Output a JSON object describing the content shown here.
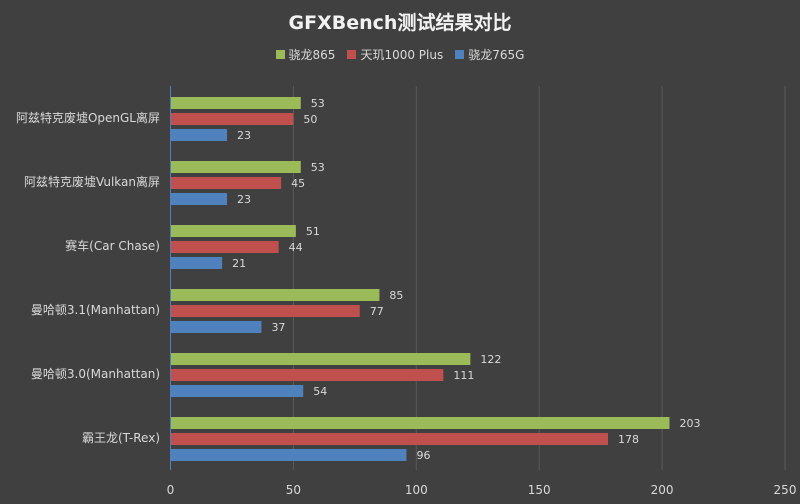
{
  "chart_data": {
    "type": "bar",
    "orientation": "horizontal",
    "title": "GFXBench测试结果对比",
    "categories": [
      "阿兹特克废墟OpenGL离屏",
      "阿兹特克废墟Vulkan离屏",
      "赛车(Car Chase)",
      "曼哈顿3.1(Manhattan)",
      "曼哈顿3.0(Manhattan)",
      "霸王龙(T-Rex)"
    ],
    "series": [
      {
        "name": "骁龙865",
        "color": "#9bbb59",
        "values": [
          53,
          53,
          51,
          85,
          122,
          203
        ]
      },
      {
        "name": "天玑1000 Plus",
        "color": "#c0504d",
        "values": [
          50,
          45,
          44,
          77,
          111,
          178
        ]
      },
      {
        "name": "骁龙765G",
        "color": "#4f81bd",
        "values": [
          23,
          23,
          21,
          37,
          54,
          96
        ]
      }
    ],
    "xlim": [
      0,
      250
    ],
    "xticks": [
      0,
      50,
      100,
      150,
      200,
      250
    ],
    "grid": true,
    "legend_position": "top"
  },
  "background": "#404040"
}
